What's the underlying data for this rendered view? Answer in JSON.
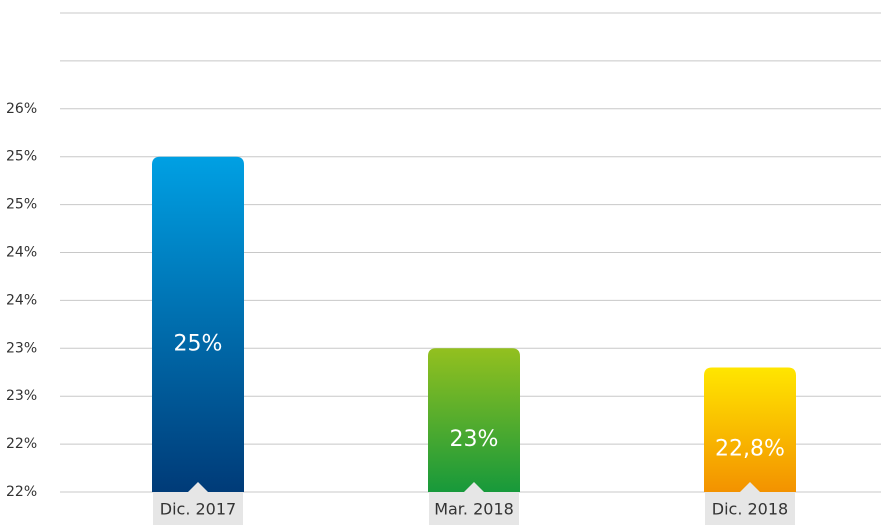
{
  "chart_data": {
    "type": "bar",
    "categories": [
      "Dic. 2017",
      "Mar. 2018",
      "Dic. 2018"
    ],
    "values": [
      25,
      23,
      22.8
    ],
    "value_labels": [
      "25%",
      "23%",
      "22,8%"
    ],
    "colors": [
      [
        "#00a0e3",
        "#003b78"
      ],
      [
        "#93c01f",
        "#17993b"
      ],
      [
        "#ffe600",
        "#f39200"
      ]
    ],
    "ylim": [
      21.5,
      26.5
    ],
    "yticks": [
      {
        "value": 21.5,
        "label": "22%"
      },
      {
        "value": 22,
        "label": "22%"
      },
      {
        "value": 22.5,
        "label": "23%"
      },
      {
        "value": 23,
        "label": "23%"
      },
      {
        "value": 23.5,
        "label": "24%"
      },
      {
        "value": 24,
        "label": "24%"
      },
      {
        "value": 24.5,
        "label": "25%"
      },
      {
        "value": 25,
        "label": "25%"
      },
      {
        "value": 25.5,
        "label": "26%"
      }
    ],
    "ygrid": [
      26,
      26.5
    ],
    "grid": true
  }
}
